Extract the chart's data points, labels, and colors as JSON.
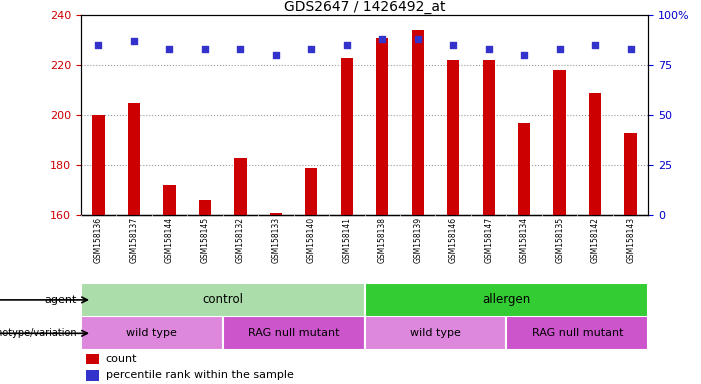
{
  "title": "GDS2647 / 1426492_at",
  "samples": [
    "GSM158136",
    "GSM158137",
    "GSM158144",
    "GSM158145",
    "GSM158132",
    "GSM158133",
    "GSM158140",
    "GSM158141",
    "GSM158138",
    "GSM158139",
    "GSM158146",
    "GSM158147",
    "GSM158134",
    "GSM158135",
    "GSM158142",
    "GSM158143"
  ],
  "counts": [
    200,
    205,
    172,
    166,
    183,
    161,
    179,
    223,
    231,
    234,
    222,
    222,
    197,
    218,
    209,
    193
  ],
  "percentile_ranks_pct": [
    85,
    87,
    83,
    83,
    83,
    80,
    83,
    85,
    88,
    88,
    85,
    83,
    80,
    83,
    85,
    83
  ],
  "ylim_left": [
    160,
    240
  ],
  "ylim_right": [
    0,
    100
  ],
  "yticks_left": [
    160,
    180,
    200,
    220,
    240
  ],
  "yticks_right": [
    0,
    25,
    50,
    75,
    100
  ],
  "bar_color": "#cc0000",
  "dot_color": "#3333cc",
  "grid_color": "#999999",
  "background_color": "#ffffff",
  "agent_color_control": "#aaddaa",
  "agent_color_allergen": "#33cc33",
  "genotype_color_light": "#dd88dd",
  "genotype_color_dark": "#cc55cc",
  "tick_label_color_left": "#cc0000",
  "tick_label_color_right": "#0000cc",
  "bar_bottom": 160,
  "bar_width": 0.35,
  "label_area_bg": "#cccccc",
  "dot_size": 18
}
